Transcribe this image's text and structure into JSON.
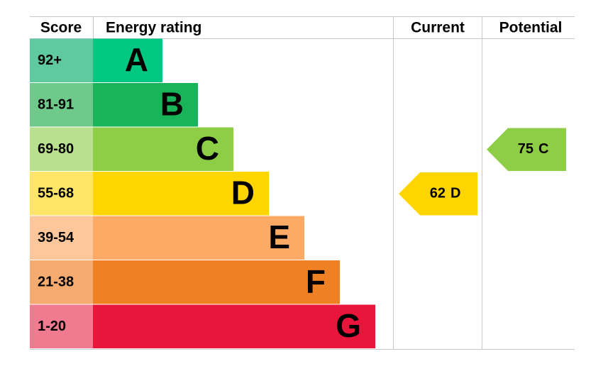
{
  "chart_data": {
    "type": "epc",
    "headers": {
      "score": "Score",
      "rating": "Energy rating",
      "current": "Current",
      "potential": "Potential"
    },
    "bands": [
      {
        "score": "92+",
        "letter": "A",
        "color": "#00c781",
        "score_color": "#5fcaa0"
      },
      {
        "score": "81-91",
        "letter": "B",
        "color": "#19b459",
        "score_color": "#6fc98a"
      },
      {
        "score": "69-80",
        "letter": "C",
        "color": "#8dce46",
        "score_color": "#b9e08e"
      },
      {
        "score": "55-68",
        "letter": "D",
        "color": "#ffd500",
        "score_color": "#ffe566"
      },
      {
        "score": "39-54",
        "letter": "E",
        "color": "#fcaa65",
        "score_color": "#fec69b"
      },
      {
        "score": "21-38",
        "letter": "F",
        "color": "#ef8023",
        "score_color": "#f5aa70"
      },
      {
        "score": "1-20",
        "letter": "G",
        "color": "#e9153b",
        "score_color": "#f07a8f"
      }
    ],
    "current": {
      "value": 62,
      "rating": "D"
    },
    "potential": {
      "value": 75,
      "rating": "C"
    }
  }
}
